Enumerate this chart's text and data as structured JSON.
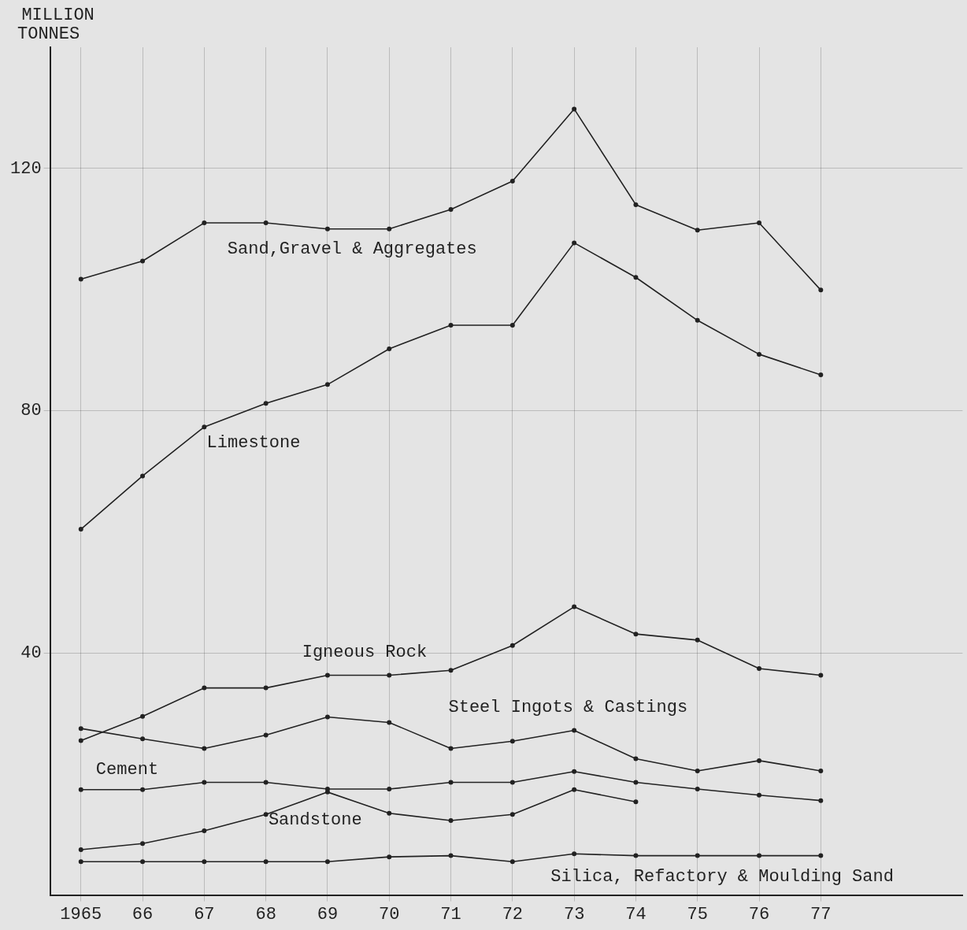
{
  "chart_data": {
    "type": "line",
    "ylabel": "MILLION TONNES",
    "x": [
      1965,
      1966,
      1967,
      1968,
      1969,
      1970,
      1971,
      1972,
      1973,
      1974,
      1975,
      1976,
      1977
    ],
    "xlim": [
      1964.5,
      1979.3
    ],
    "xticks": [
      1965,
      {
        "value": 1966,
        "label": "66"
      },
      {
        "value": 1967,
        "label": "67"
      },
      {
        "value": 1968,
        "label": "68"
      },
      {
        "value": 1969,
        "label": "69"
      },
      {
        "value": 1970,
        "label": "70"
      },
      {
        "value": 1971,
        "label": "71"
      },
      {
        "value": 1972,
        "label": "72"
      },
      {
        "value": 1973,
        "label": "73"
      },
      {
        "value": 1974,
        "label": "74"
      },
      {
        "value": 1975,
        "label": "75"
      },
      {
        "value": 1976,
        "label": "76"
      },
      {
        "value": 1977,
        "label": "77"
      }
    ],
    "ylim": [
      0,
      140
    ],
    "yticks": [
      40,
      80,
      120
    ],
    "grid": true,
    "legend": false,
    "marker": "circle",
    "line_style": "solid",
    "series": [
      {
        "name": "Sand,Gravel & Aggregates",
        "color": "#222222",
        "values": [
          101.7,
          104.7,
          111,
          111,
          110,
          110,
          113.2,
          117.9,
          129.8,
          114,
          109.8,
          111,
          99.9
        ]
      },
      {
        "name": "Limestone",
        "color": "#222222",
        "values": [
          60.4,
          69.2,
          77.3,
          81.2,
          84.3,
          90.2,
          94.1,
          94.1,
          107.7,
          102,
          94.9,
          89.3,
          85.9
        ]
      },
      {
        "name": "Igneous Rock",
        "color": "#222222",
        "values": [
          25.5,
          29.5,
          34.2,
          34.2,
          36.3,
          36.3,
          37.1,
          41.2,
          47.6,
          43.1,
          42.1,
          37.4,
          36.3
        ]
      },
      {
        "name": "Steel Ingots & Castings",
        "color": "#222222",
        "values": [
          27.5,
          25.8,
          24.2,
          26.4,
          29.4,
          28.5,
          24.2,
          25.4,
          27.2,
          22.5,
          20.5,
          22.2,
          20.5
        ]
      },
      {
        "name": "Cement",
        "color": "#222222",
        "values": [
          17.4,
          17.4,
          18.6,
          18.6,
          17.5,
          17.5,
          18.6,
          18.6,
          20.4,
          18.6,
          17.5,
          16.5,
          15.6
        ]
      },
      {
        "name": "Sandstone",
        "color": "#222222",
        "values": [
          7.5,
          8.5,
          10.6,
          13.3,
          17,
          13.5,
          12.3,
          13.3,
          17.4,
          15.4,
          null,
          null,
          null
        ]
      },
      {
        "name": "Silica, Refactory & Moulding Sand",
        "color": "#222222",
        "values": [
          5.5,
          5.5,
          5.5,
          5.5,
          5.5,
          6.3,
          6.5,
          5.5,
          6.8,
          6.5,
          6.5,
          6.5,
          6.5
        ]
      }
    ]
  }
}
